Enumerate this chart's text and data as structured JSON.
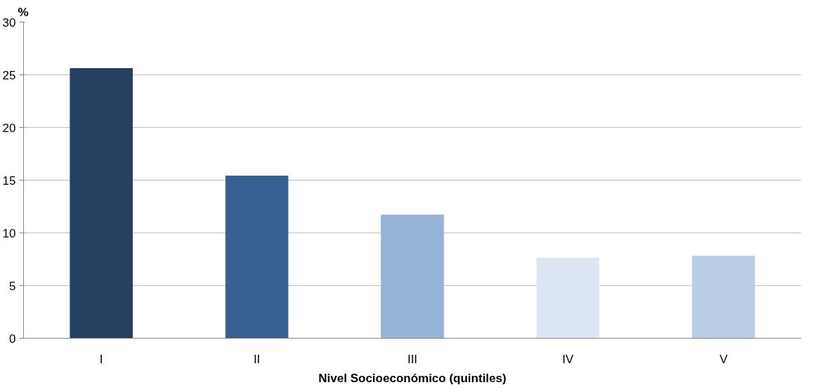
{
  "chart_data": {
    "type": "bar",
    "ylabel": "%",
    "xlabel": "Nivel Socioeconómico (quintiles)",
    "categories": [
      "I",
      "II",
      "III",
      "IV",
      "V"
    ],
    "values": [
      25.6,
      15.4,
      11.7,
      7.6,
      7.8
    ],
    "colors": [
      "#264061",
      "#376092",
      "#95b3d7",
      "#dce6f2",
      "#b9cde5"
    ],
    "ylim": [
      0,
      30
    ],
    "yticks": [
      0,
      5,
      10,
      15,
      20,
      25,
      30
    ],
    "grid": "y"
  }
}
